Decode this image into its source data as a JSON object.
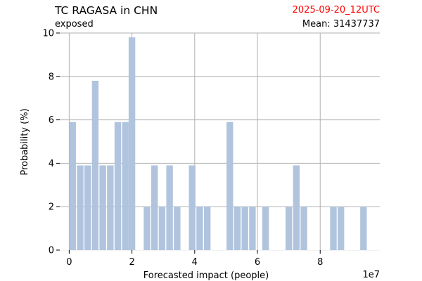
{
  "header": {
    "title": "TC RAGASA in CHN",
    "subtitle": "exposed",
    "date": "2025-09-20_12UTC",
    "mean": "Mean: 31437737"
  },
  "colors": {
    "bar": "#b0c4de",
    "date": "#ff0000",
    "grid": "#b0b0b0"
  },
  "chart_data": {
    "type": "bar",
    "title": "TC RAGASA in CHN",
    "xlabel": "Forecasted impact (people)",
    "ylabel": "Probability (%)",
    "x_scale_label": "1e7",
    "xlim": [
      -0.3,
      9.9
    ],
    "ylim": [
      0,
      10
    ],
    "bar_width": 0.21,
    "x_ticks": [
      0,
      2,
      4,
      6,
      8
    ],
    "y_ticks": [
      0,
      2,
      4,
      6,
      8,
      10
    ],
    "grid": true,
    "x_unit": "1e7 people",
    "x": [
      0.11,
      0.35,
      0.59,
      0.83,
      1.07,
      1.31,
      1.55,
      1.79,
      2.0,
      2.48,
      2.72,
      2.96,
      3.2,
      3.44,
      3.92,
      4.16,
      4.4,
      5.12,
      5.36,
      5.6,
      5.84,
      6.26,
      7.0,
      7.24,
      7.48,
      8.42,
      8.66,
      9.38
    ],
    "values": [
      5.9,
      3.9,
      3.9,
      7.8,
      3.9,
      3.9,
      5.9,
      5.9,
      9.8,
      2.0,
      3.9,
      2.0,
      3.9,
      2.0,
      3.9,
      2.0,
      2.0,
      5.9,
      2.0,
      2.0,
      2.0,
      2.0,
      2.0,
      3.9,
      2.0,
      2.0,
      2.0,
      2.0
    ]
  }
}
